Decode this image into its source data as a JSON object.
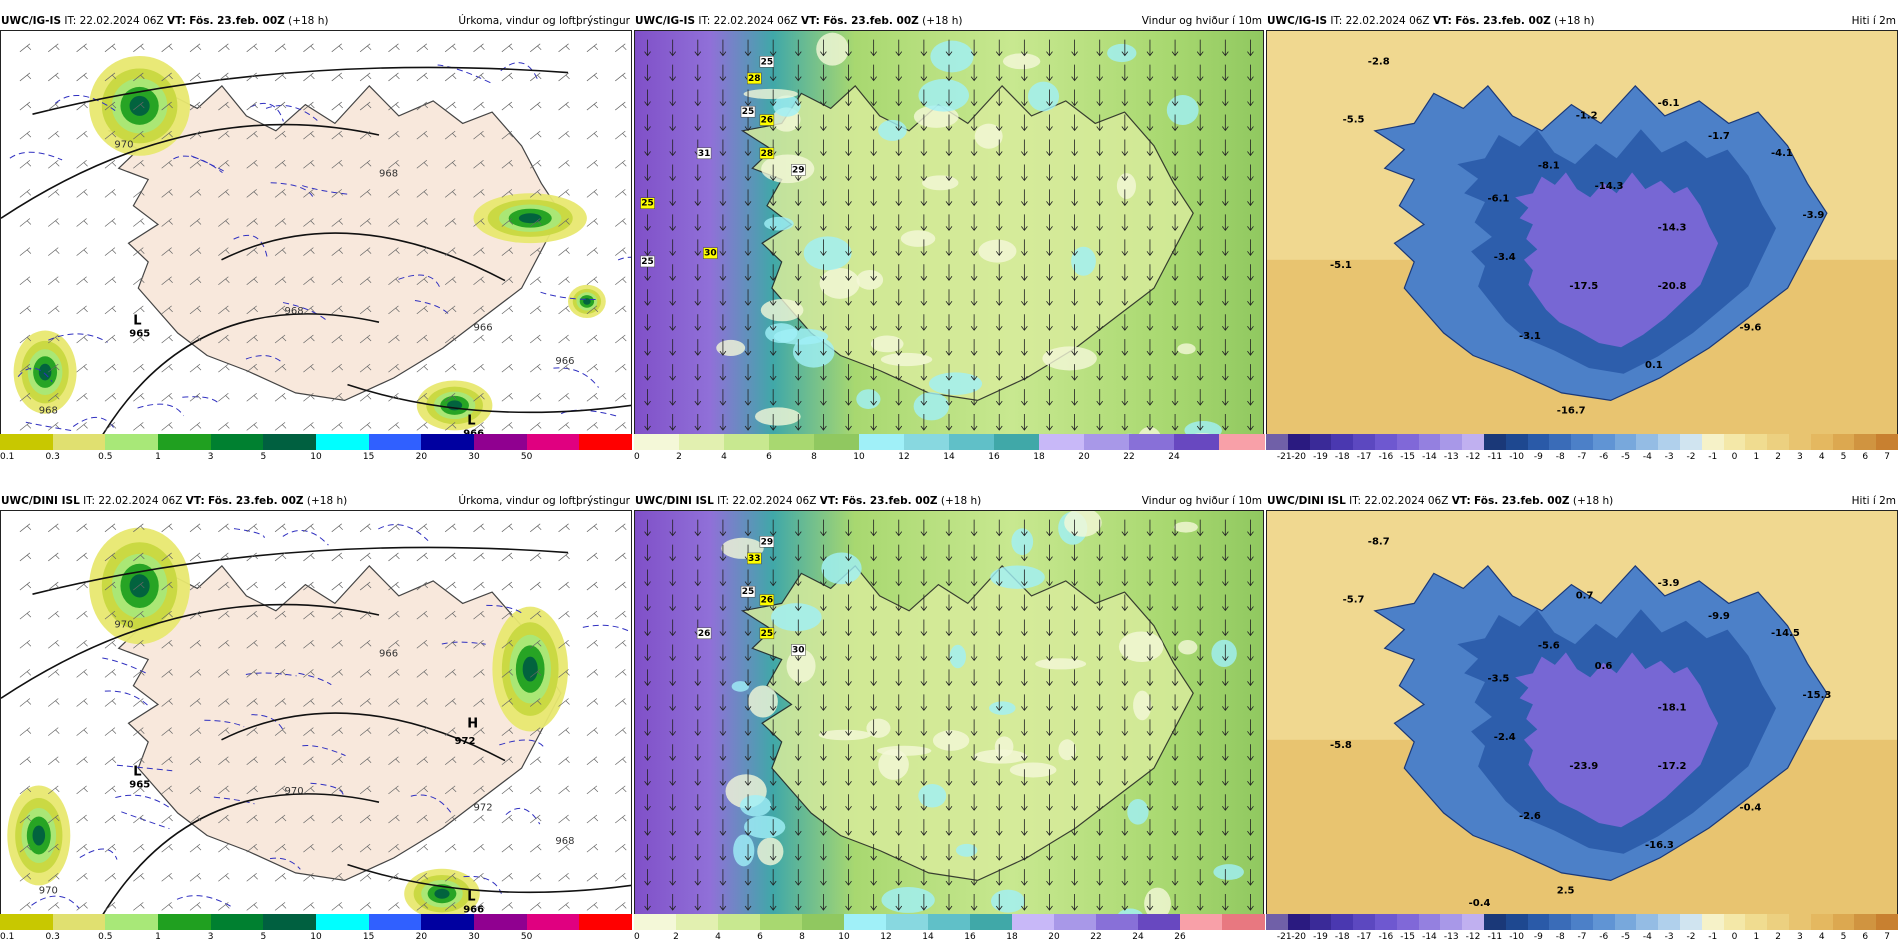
{
  "rows": [
    {
      "panels": [
        {
          "kind": "precip",
          "model": "UWC/IG-IS",
          "it_label": "IT:",
          "it": "22.02.2024 06Z",
          "vt_label": "VT:",
          "vt": "Fös. 23.feb. 00Z",
          "lead": "(+18 h)",
          "title": "Úrkoma, vindur og loftþrýstingur",
          "pressure_labels": [
            "970",
            "968",
            "966",
            "968",
            "966",
            "968"
          ],
          "lows": [
            {
              "label": "L",
              "value": "965"
            },
            {
              "label": "L",
              "value": "966"
            }
          ],
          "highs": []
        },
        {
          "kind": "wind",
          "model": "UWC/IG-IS",
          "it_label": "IT:",
          "it": "22.02.2024 06Z",
          "vt_label": "VT:",
          "vt": "Fös. 23.feb. 00Z",
          "lead": "(+18 h)",
          "title": "Vindur og hviður í 10m",
          "gusts": [
            "25",
            "28",
            "25",
            "26",
            "31",
            "28",
            "29",
            "25",
            "25",
            "30"
          ]
        },
        {
          "kind": "temp",
          "model": "UWC/IG-IS",
          "it_label": "IT:",
          "it": "22.02.2024 06Z",
          "vt_label": "VT:",
          "vt": "Fös. 23.feb. 00Z",
          "lead": "(+18 h)",
          "title": "Hiti í 2m",
          "temps": [
            "-2.8",
            "-5.5",
            "-1.2",
            "-6.1",
            "-1.7",
            "-4.1",
            "-8.1",
            "-14.3",
            "-6.1",
            "-14.3",
            "-3.9",
            "-5.1",
            "-3.4",
            "-17.5",
            "-20.8",
            "-3.1",
            "-9.6",
            "0.1",
            "-16.7"
          ]
        }
      ]
    },
    {
      "panels": [
        {
          "kind": "precip",
          "model": "UWC/DINI ISL",
          "it_label": "IT:",
          "it": "22.02.2024 06Z",
          "vt_label": "VT:",
          "vt": "Fös. 23.feb. 00Z",
          "lead": "(+18 h)",
          "title": "Úrkoma, vindur og loftþrýstingur",
          "pressure_labels": [
            "970",
            "970",
            "968",
            "970",
            "972",
            "966"
          ],
          "lows": [
            {
              "label": "L",
              "value": "965"
            },
            {
              "label": "L",
              "value": "966"
            }
          ],
          "highs": [
            {
              "label": "H",
              "value": "972"
            }
          ]
        },
        {
          "kind": "wind",
          "model": "UWC/DINI ISL",
          "it_label": "IT:",
          "it": "22.02.2024 06Z",
          "vt_label": "VT:",
          "vt": "Fös. 23.feb. 00Z",
          "lead": "(+18 h)",
          "title": "Vindur og hviður í 10m",
          "gusts": [
            "29",
            "33",
            "25",
            "26",
            "26",
            "25",
            "30"
          ]
        },
        {
          "kind": "temp",
          "model": "UWC/DINI ISL",
          "it_label": "IT:",
          "it": "22.02.2024 06Z",
          "vt_label": "VT:",
          "vt": "Fös. 23.feb. 00Z",
          "lead": "(+18 h)",
          "title": "Hiti í 2m",
          "temps": [
            "-8.7",
            "-5.7",
            "0.7",
            "-3.9",
            "-9.9",
            "-14.5",
            "-5.6",
            "0.6",
            "-3.5",
            "-18.1",
            "-15.3",
            "-5.8",
            "-2.4",
            "-23.9",
            "-17.2",
            "-2.6",
            "-0.4",
            "-16.3",
            "2.5",
            "-0.4"
          ]
        }
      ]
    }
  ],
  "colorbars": {
    "precip": {
      "colors": [
        "#c8c800",
        "#e0e070",
        "#a8e878",
        "#20a020",
        "#008030",
        "#006040",
        "#00ffff",
        "#3060ff",
        "#0000a0",
        "#900090",
        "#e00080",
        "#ff0000"
      ],
      "ticks": [
        "0.1",
        "0.3",
        "0.5",
        "1",
        "3",
        "5",
        "10",
        "15",
        "20",
        "30",
        "50"
      ]
    },
    "wind_top": {
      "colors": [
        "#f4f8d8",
        "#e2f0b0",
        "#c8e890",
        "#a8d870",
        "#90c860",
        "#a0f0f8",
        "#88d8e0",
        "#60c0c8",
        "#40a8a8",
        "#c8b8f8",
        "#a898e8",
        "#8870d8",
        "#6848c0",
        "#f8a0a8"
      ],
      "ticks": [
        "0",
        "2",
        "4",
        "6",
        "8",
        "10",
        "12",
        "14",
        "16",
        "18",
        "20",
        "22",
        "24"
      ]
    },
    "wind_bottom": {
      "colors": [
        "#f4f8d8",
        "#e2f0b0",
        "#c8e890",
        "#a8d870",
        "#90c860",
        "#a0f0f8",
        "#88d8e0",
        "#60c0c8",
        "#40a8a8",
        "#c8b8f8",
        "#a898e8",
        "#8870d8",
        "#6848c0",
        "#f8a0a8",
        "#e87880"
      ],
      "ticks": [
        "0",
        "2",
        "4",
        "6",
        "8",
        "10",
        "12",
        "14",
        "16",
        "18",
        "20",
        "22",
        "24",
        "26"
      ]
    },
    "temp": {
      "colors": [
        "#7060a8",
        "#2a1a80",
        "#3a2a98",
        "#4a38b0",
        "#5c48c0",
        "#6e58d0",
        "#8068d8",
        "#9480e0",
        "#a898e8",
        "#c0b0f0",
        "#1a3878",
        "#1e4890",
        "#2a5aa8",
        "#3a6cb8",
        "#4c80c8",
        "#6094d4",
        "#78a8dc",
        "#94bce4",
        "#b0d0ec",
        "#d0e4f0",
        "#f6f2c8",
        "#f4e8a8",
        "#f0dc90",
        "#ecd080",
        "#e8c470",
        "#e4b860",
        "#dca850",
        "#d09440",
        "#c88030"
      ],
      "ticks": [
        "-21",
        "-20",
        "-19",
        "-18",
        "-17",
        "-16",
        "-15",
        "-14",
        "-13",
        "-12",
        "-11",
        "-10",
        "-9",
        "-8",
        "-7",
        "-6",
        "-5",
        "-4",
        "-3",
        "-2",
        "-1",
        "0",
        "1",
        "2",
        "3",
        "4",
        "5",
        "6",
        "7"
      ]
    }
  },
  "colors": {
    "land_precip": "#f8e8dc",
    "sea_precip": "#ffffff",
    "isobar": "#111111",
    "temp_line": "#3030c0"
  }
}
